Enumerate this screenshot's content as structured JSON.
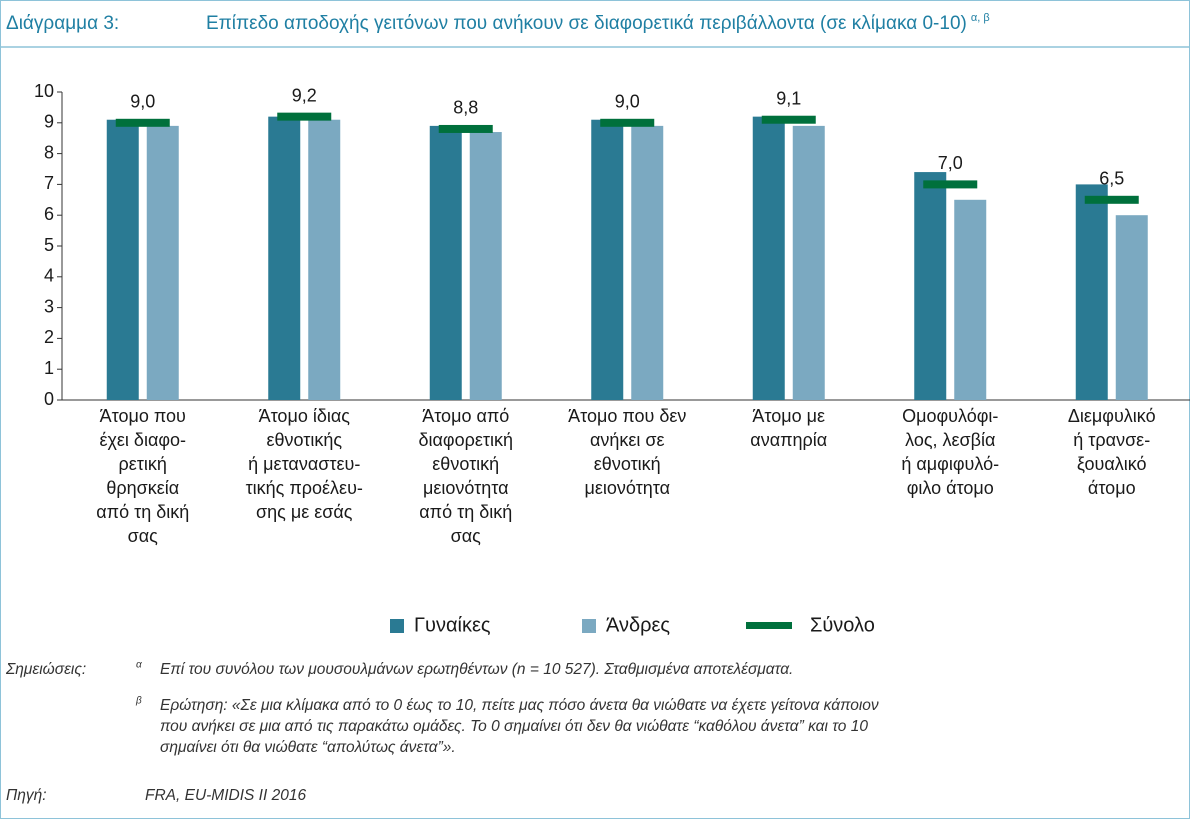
{
  "chart_data": {
    "type": "bar",
    "title_number": "Διάγραμμα 3:",
    "title": "Επίπεδο αποδοχής γειτόνων που ανήκουν σε διαφορετικά περιβάλλοντα (σε κλίμακα 0-10)",
    "title_superscript": "α, β",
    "categories": [
      [
        "Άτομο που",
        "έχει διαφο-",
        "ρετική",
        "θρησκεία",
        "από τη δική",
        "σας"
      ],
      [
        "Άτομο ίδιας",
        "εθνοτικής",
        "ή μεταναστευ-",
        "τικής προέλευ-",
        "σης με εσάς"
      ],
      [
        "Άτομο από",
        "διαφορετική",
        "εθνοτική",
        "μειονότητα",
        "από τη δική",
        "σας"
      ],
      [
        "Άτομο που δεν",
        "ανήκει σε",
        "εθνοτική",
        "μειονότητα"
      ],
      [
        "Άτομο με",
        "αναπηρία"
      ],
      [
        "Ομοφυλόφι-",
        "λος, λεσβία",
        "ή αμφιφυλό-",
        "φιλο άτομο"
      ],
      [
        "Διεμφυλικό",
        "ή τρανσε-",
        "ξουαλικό",
        "άτομο"
      ]
    ],
    "series": [
      {
        "name": "Γυναίκες",
        "color": "#2a7a93",
        "values": [
          9.1,
          9.2,
          8.9,
          9.1,
          9.2,
          7.4,
          7.0
        ]
      },
      {
        "name": "Άνδρες",
        "color": "#7ba9c1",
        "values": [
          8.9,
          9.1,
          8.7,
          8.9,
          8.9,
          6.5,
          6.0
        ]
      },
      {
        "name": "Σύνολο",
        "color": "#00703c",
        "marker": "line",
        "values": [
          9.0,
          9.2,
          8.8,
          9.0,
          9.1,
          7.0,
          6.5
        ],
        "value_labels": [
          "9,0",
          "9,2",
          "8,8",
          "9,0",
          "9,1",
          "7,0",
          "6,5"
        ]
      }
    ],
    "ylim": [
      0,
      10
    ],
    "yticks": [
      0,
      1,
      2,
      3,
      4,
      5,
      6,
      7,
      8,
      9,
      10
    ],
    "grid": false,
    "legend": "bottom"
  },
  "notes": {
    "label": "Σημειώσεις:",
    "items": [
      {
        "marker": "α",
        "lines": [
          "Επί του συνόλου των μουσουλμάνων ερωτηθέντων (n = 10 527). Σταθμισμένα αποτελέσματα."
        ]
      },
      {
        "marker": "β",
        "lines": [
          "Ερώτηση: «Σε μια κλίμακα από το 0 έως το 10, πείτε μας πόσο άνετα θα νιώθατε να έχετε γείτονα κάποιον",
          "που ανήκει σε μια από τις παρακάτω ομάδες. Το 0 σημαίνει ότι δεν θα νιώθατε “καθόλου άνετα” και το 10",
          "σημαίνει ότι θα νιώθατε “απολύτως άνετα”»."
        ]
      }
    ]
  },
  "source": {
    "label": "Πηγή:",
    "text": "FRA, EU-MIDIS II 2016"
  }
}
